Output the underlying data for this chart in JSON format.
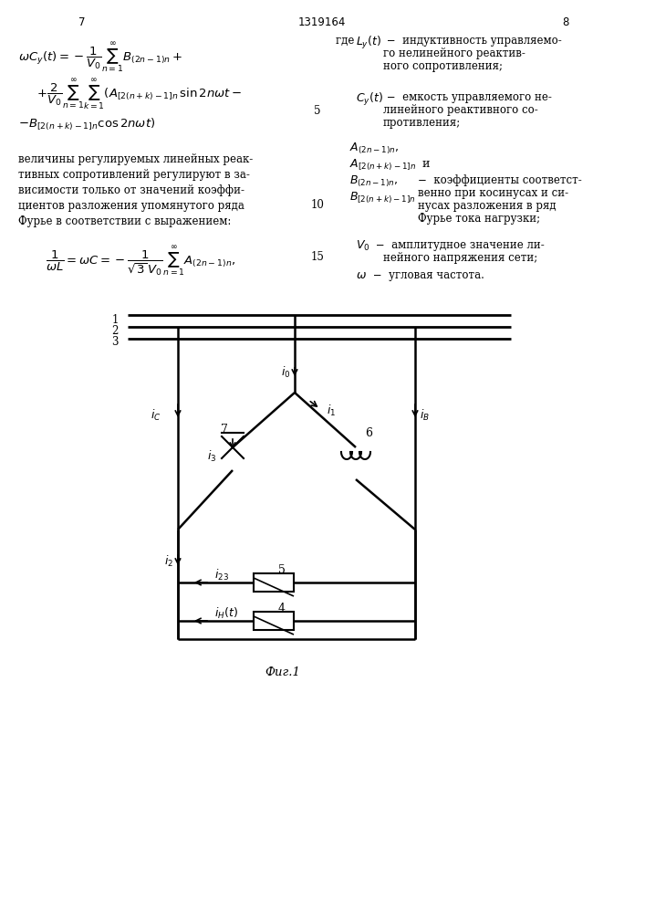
{
  "page_num_left": "7",
  "page_num_center": "1319164",
  "page_num_right": "8",
  "bg_color": "#ffffff",
  "text_color": "#000000",
  "fig_label": "Фиг.1",
  "left_col": {
    "formula1": "ωCᵧ(t)= − ¹⁄V₀ ∑ B₊₊₂ₙ₋₁₊ₙ +",
    "formula2": "+ ²⁄V₀ ∑∑(A₊₊₂₊ₙ₊₋₊₋₊₁₊ₙ sin2nωt−",
    "formula3": "−B₊₊₂₊ₙ₊₋₊₋₊₁₊ₙ cos2nωt)",
    "paragraph": "величины регулируемых линейных реак-\nтивных сопротивлений регулируют в за-\nвисимости только от значений коэффи-\nциентов разложения упомянутого ряда\nФурье в соответствии с выражением:",
    "formula4": "¹⁄ωL = ωC= − ¹⁄√3 V₀ ∑ A₊₊₂ₙ₋₁₊ₙ"
  },
  "right_col": {
    "where_Ly": "где  Lᵧ(t)  −  индуктивность управляемо-\nго нелинейного реактив-\nного сопротивления;",
    "Cy_text": "Cᵧ(t)  −  емкость управляемого не-\nлинейного реактивного со-\nпротивления;",
    "coeff_text": "коэффициенты соответст-\nвенно при косинусах и си-\nнусах разложения в ряд\nФурье тока нагрузки;",
    "V0_text": "V₀  −  амплитудное значение ли-\nнейного напряжения сети;",
    "omega_text": "ω  −  угловая частота."
  }
}
